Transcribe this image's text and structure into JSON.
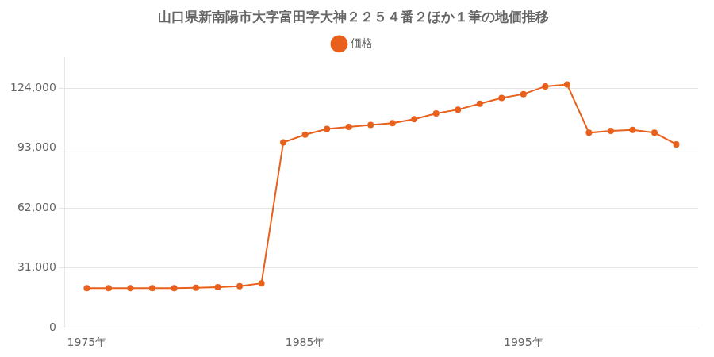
{
  "chart_data": {
    "type": "line",
    "title": "山口県新南陽市大字富田字大神２２５４番２ほか１筆の地価推移",
    "x": [
      1975,
      1976,
      1977,
      1978,
      1979,
      1980,
      1981,
      1982,
      1983,
      1984,
      1985,
      1986,
      1987,
      1988,
      1989,
      1990,
      1991,
      1992,
      1993,
      1994,
      1995,
      1996,
      1997,
      1998,
      1999,
      2000,
      2001,
      2002
    ],
    "series": [
      {
        "name": "価格",
        "color": "#e8601c",
        "marker": "circle",
        "values": [
          20500,
          20500,
          20500,
          20500,
          20500,
          20700,
          21000,
          21500,
          23000,
          96000,
          100000,
          103000,
          104000,
          105000,
          106000,
          108000,
          111000,
          113000,
          116000,
          119000,
          121000,
          125000,
          126000,
          101000,
          102000,
          102500,
          101000,
          95000
        ]
      }
    ],
    "xlim": [
      1974,
      2003
    ],
    "xticks": [
      {
        "value": 1975,
        "label": "1975年"
      },
      {
        "value": 1985,
        "label": "1985年"
      },
      {
        "value": 1995,
        "label": "1995年"
      }
    ],
    "ylim": [
      0,
      140000
    ],
    "yticks": [
      0,
      {
        "value": 31000,
        "label": "31,000"
      },
      {
        "value": 62000,
        "label": "62,000"
      },
      {
        "value": 93000,
        "label": "93,000"
      },
      {
        "value": 124000,
        "label": "124,000"
      }
    ],
    "grid": true,
    "legend": "top"
  }
}
